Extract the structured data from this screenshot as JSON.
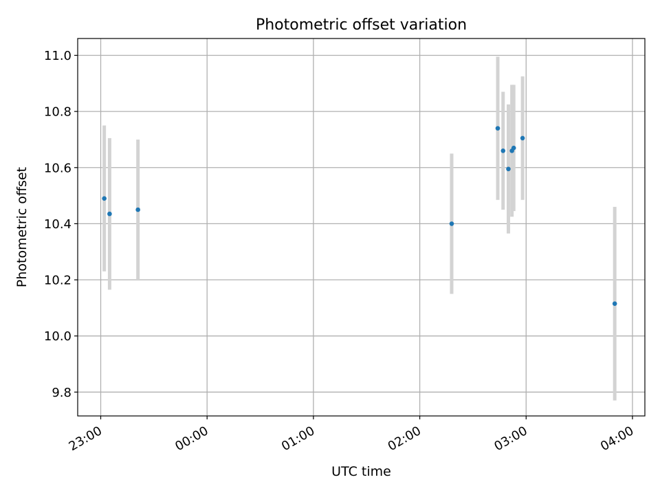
{
  "chart_data": {
    "type": "scatter",
    "title": "Photometric offset variation",
    "xlabel": "UTC time",
    "ylabel": "Photometric offset",
    "grid": true,
    "x_tick_labels": [
      "23:00",
      "00:00",
      "01:00",
      "02:00",
      "03:00",
      "04:00"
    ],
    "y_ticks": [
      9.8,
      10.0,
      10.2,
      10.4,
      10.6,
      10.8,
      11.0
    ],
    "y_tick_labels": [
      "9.8",
      "10.0",
      "10.2",
      "10.4",
      "10.6",
      "10.8",
      "11.0"
    ],
    "ylim": [
      9.715,
      11.06
    ],
    "xlim": [
      "22:47",
      "04:07"
    ],
    "colors": {
      "point": "#1f77b4",
      "errorbar": "#d3d3d3",
      "grid": "#b0b0b0"
    },
    "series": [
      {
        "points": [
          {
            "x": "23:02",
            "y": 10.49,
            "yerr": 0.26
          },
          {
            "x": "23:05",
            "y": 10.435,
            "yerr": 0.27
          },
          {
            "x": "23:21",
            "y": 10.45,
            "yerr": 0.25
          },
          {
            "x": "02:18",
            "y": 10.4,
            "yerr": 0.25
          },
          {
            "x": "02:44",
            "y": 10.74,
            "yerr": 0.255
          },
          {
            "x": "02:47",
            "y": 10.66,
            "yerr": 0.21
          },
          {
            "x": "02:50",
            "y": 10.595,
            "yerr": 0.23
          },
          {
            "x": "02:52",
            "y": 10.66,
            "yerr": 0.235
          },
          {
            "x": "02:53",
            "y": 10.67,
            "yerr": 0.225
          },
          {
            "x": "02:58",
            "y": 10.705,
            "yerr": 0.22
          },
          {
            "x": "03:50",
            "y": 10.115,
            "yerr": 0.345
          }
        ]
      }
    ]
  }
}
